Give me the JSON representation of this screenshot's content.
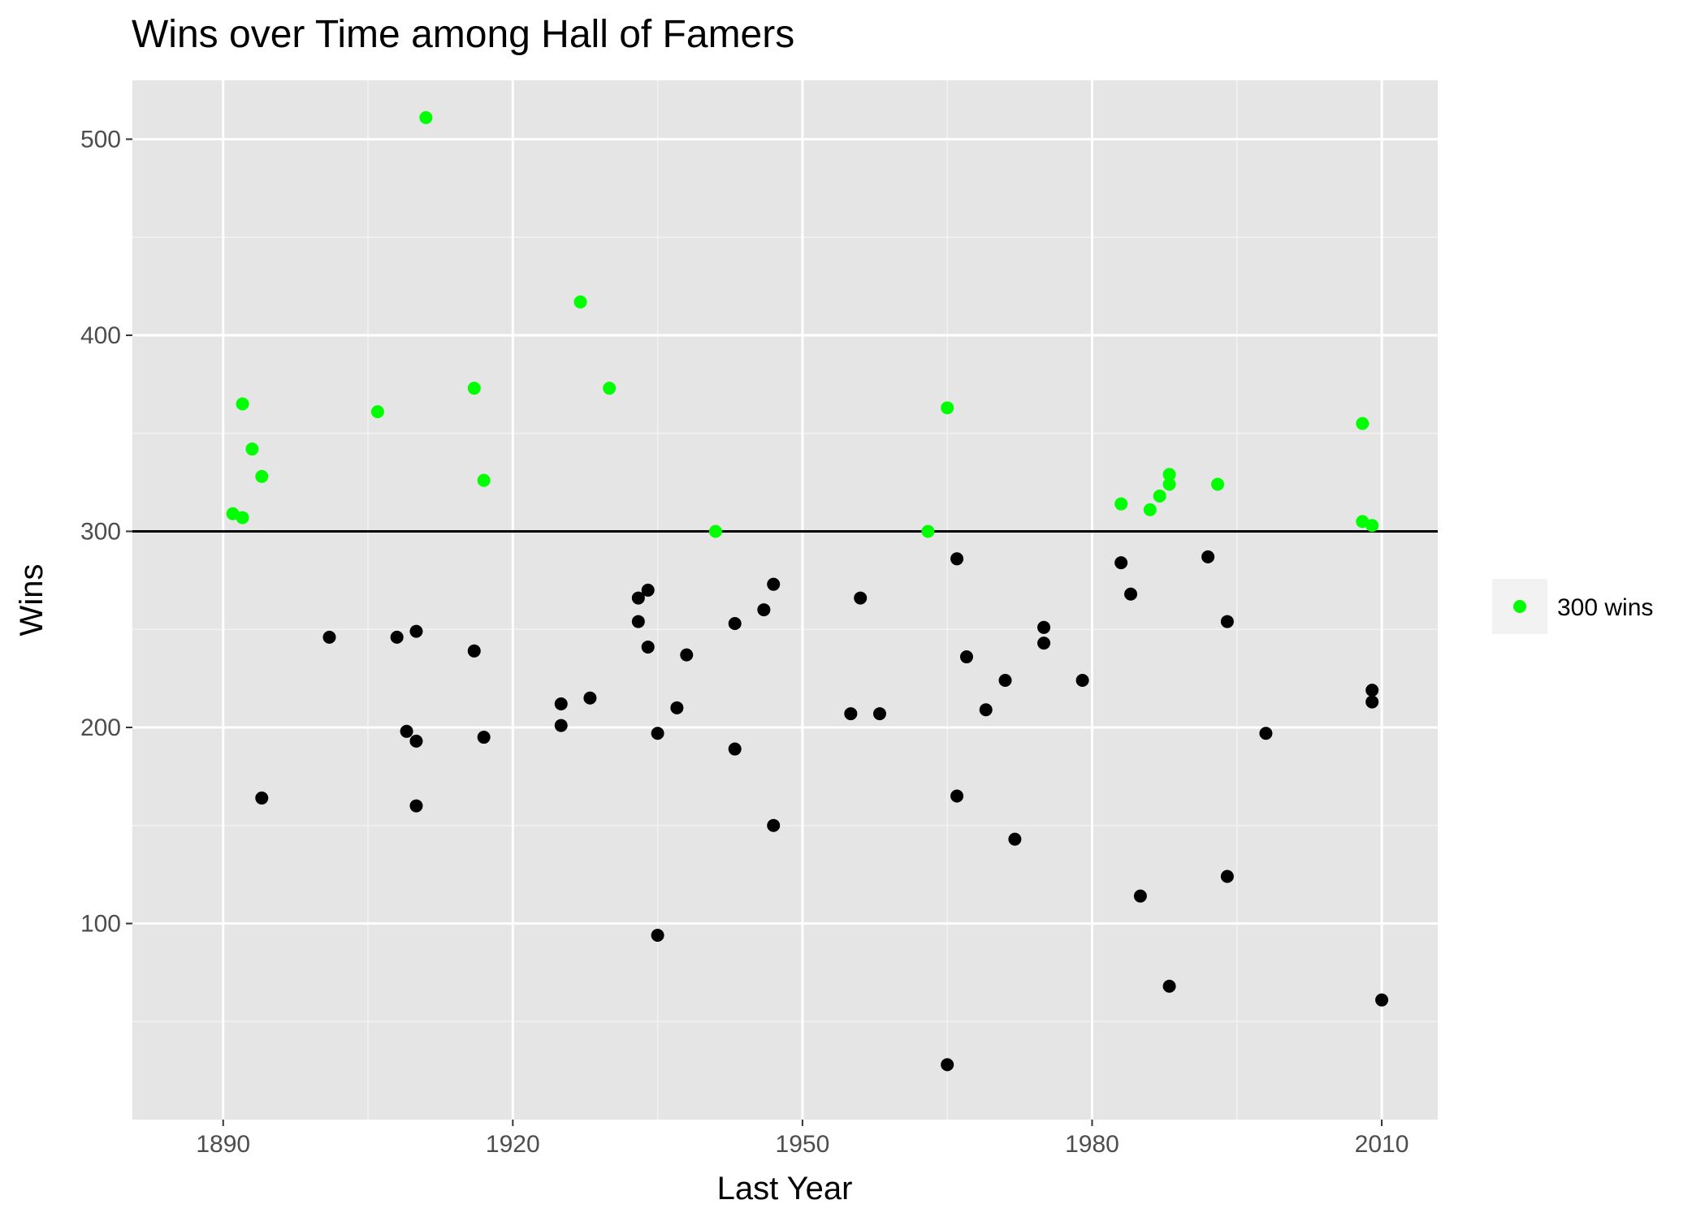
{
  "chart_data": {
    "type": "scatter",
    "title": "Wins over Time among Hall of Famers",
    "xlabel": "Last Year",
    "ylabel": "Wins",
    "xlim": [
      1880.6,
      2015.8
    ],
    "ylim": [
      0,
      530
    ],
    "x_ticks": [
      1890,
      1920,
      1950,
      1980,
      2010
    ],
    "x_minor_ticks": [
      1905,
      1935,
      1965,
      1995
    ],
    "y_ticks": [
      100,
      200,
      300,
      400,
      500
    ],
    "y_minor_ticks": [
      50,
      150,
      250,
      350,
      450
    ],
    "reference_line": {
      "y": 300,
      "color": "#000000"
    },
    "grid": true,
    "panel_background": "#e5e5e5",
    "legend": {
      "position": "right",
      "label": "300 wins",
      "color": "#00ff00"
    },
    "series": [
      {
        "name": "300 wins",
        "color": "#00ff00",
        "points": [
          {
            "x": 1891,
            "y": 309
          },
          {
            "x": 1892,
            "y": 365
          },
          {
            "x": 1892,
            "y": 307
          },
          {
            "x": 1893,
            "y": 342
          },
          {
            "x": 1894,
            "y": 328
          },
          {
            "x": 1906,
            "y": 361
          },
          {
            "x": 1911,
            "y": 511
          },
          {
            "x": 1916,
            "y": 373
          },
          {
            "x": 1917,
            "y": 326
          },
          {
            "x": 1927,
            "y": 417
          },
          {
            "x": 1930,
            "y": 373
          },
          {
            "x": 1941,
            "y": 300
          },
          {
            "x": 1963,
            "y": 300
          },
          {
            "x": 1965,
            "y": 363
          },
          {
            "x": 1983,
            "y": 314
          },
          {
            "x": 1986,
            "y": 311
          },
          {
            "x": 1987,
            "y": 318
          },
          {
            "x": 1988,
            "y": 329
          },
          {
            "x": 1988,
            "y": 324
          },
          {
            "x": 1993,
            "y": 324
          },
          {
            "x": 2008,
            "y": 355
          },
          {
            "x": 2008,
            "y": 305
          },
          {
            "x": 2009,
            "y": 303
          }
        ]
      },
      {
        "color": "#000000",
        "points": [
          {
            "x": 1894,
            "y": 164
          },
          {
            "x": 1901,
            "y": 246
          },
          {
            "x": 1908,
            "y": 246
          },
          {
            "x": 1909,
            "y": 198
          },
          {
            "x": 1910,
            "y": 249
          },
          {
            "x": 1910,
            "y": 193
          },
          {
            "x": 1910,
            "y": 160
          },
          {
            "x": 1916,
            "y": 239
          },
          {
            "x": 1917,
            "y": 195
          },
          {
            "x": 1925,
            "y": 212
          },
          {
            "x": 1925,
            "y": 201
          },
          {
            "x": 1928,
            "y": 215
          },
          {
            "x": 1933,
            "y": 266
          },
          {
            "x": 1933,
            "y": 254
          },
          {
            "x": 1934,
            "y": 270
          },
          {
            "x": 1934,
            "y": 241
          },
          {
            "x": 1935,
            "y": 197
          },
          {
            "x": 1935,
            "y": 94
          },
          {
            "x": 1937,
            "y": 210
          },
          {
            "x": 1938,
            "y": 237
          },
          {
            "x": 1943,
            "y": 253
          },
          {
            "x": 1943,
            "y": 189
          },
          {
            "x": 1946,
            "y": 260
          },
          {
            "x": 1947,
            "y": 273
          },
          {
            "x": 1947,
            "y": 150
          },
          {
            "x": 1955,
            "y": 207
          },
          {
            "x": 1956,
            "y": 266
          },
          {
            "x": 1958,
            "y": 207
          },
          {
            "x": 1965,
            "y": 28
          },
          {
            "x": 1966,
            "y": 286
          },
          {
            "x": 1966,
            "y": 165
          },
          {
            "x": 1967,
            "y": 236
          },
          {
            "x": 1969,
            "y": 209
          },
          {
            "x": 1971,
            "y": 224
          },
          {
            "x": 1972,
            "y": 143
          },
          {
            "x": 1975,
            "y": 251
          },
          {
            "x": 1975,
            "y": 243
          },
          {
            "x": 1979,
            "y": 224
          },
          {
            "x": 1983,
            "y": 284
          },
          {
            "x": 1984,
            "y": 268
          },
          {
            "x": 1985,
            "y": 114
          },
          {
            "x": 1988,
            "y": 68
          },
          {
            "x": 1992,
            "y": 287
          },
          {
            "x": 1994,
            "y": 254
          },
          {
            "x": 1994,
            "y": 124
          },
          {
            "x": 1998,
            "y": 197
          },
          {
            "x": 2009,
            "y": 219
          },
          {
            "x": 2009,
            "y": 213
          },
          {
            "x": 2010,
            "y": 61
          }
        ]
      }
    ]
  }
}
